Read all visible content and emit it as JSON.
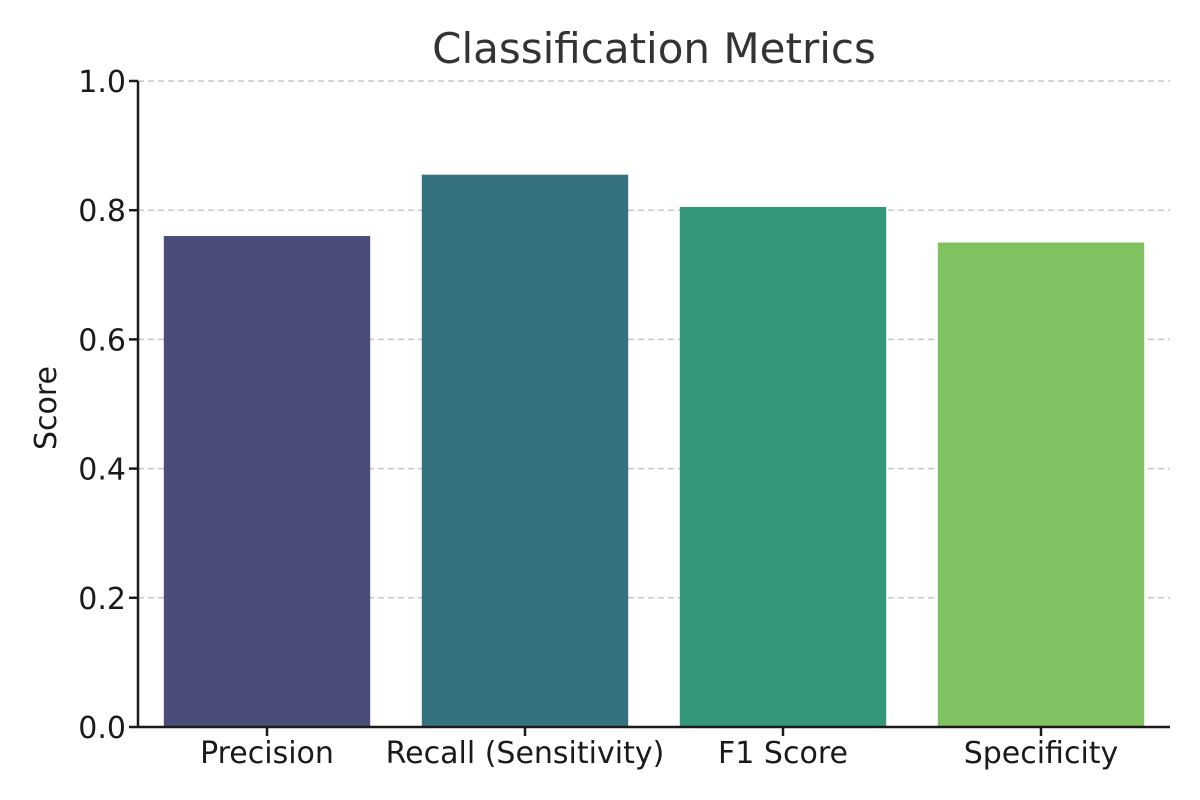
{
  "chart_data": {
    "type": "bar",
    "title": "Classification Metrics",
    "xlabel": "",
    "ylabel": "Score",
    "categories": [
      "Precision",
      "Recall (Sensitivity)",
      "F1 Score",
      "Specificity"
    ],
    "values": [
      0.76,
      0.855,
      0.805,
      0.75
    ],
    "colors": [
      "#4a4c7a",
      "#367180",
      "#34977b",
      "#80c162"
    ],
    "ylim": [
      0,
      1.0
    ],
    "yticks": [
      "0.0",
      "0.2",
      "0.4",
      "0.6",
      "0.8",
      "1.0"
    ],
    "grid": "y-dashed",
    "legend": "none"
  }
}
